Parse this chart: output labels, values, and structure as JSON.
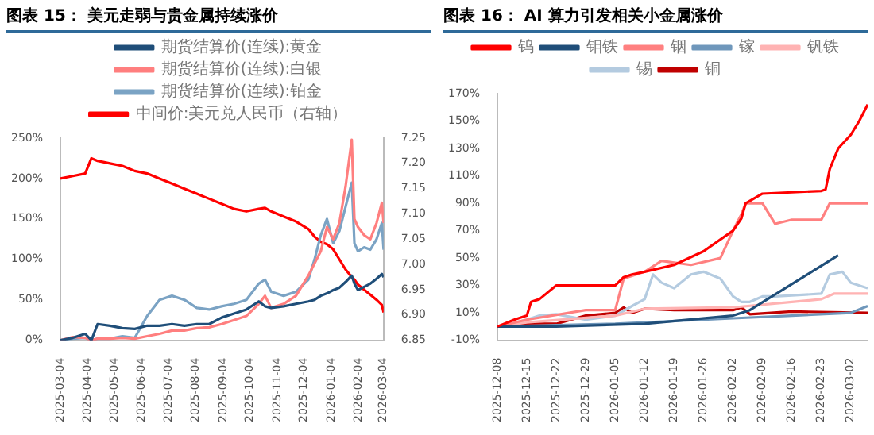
{
  "chart_data": [
    {
      "type": "line",
      "title": "图表 15： 美元走弱与贵金属持续涨价",
      "legend": "top",
      "grid": false,
      "marker": "none",
      "line_style": "solid",
      "x": [
        "2025-03-04",
        "2025-03-18",
        "2025-04-01",
        "2025-04-08",
        "2025-04-15",
        "2025-04-29",
        "2025-05-13",
        "2025-05-27",
        "2025-06-10",
        "2025-06-24",
        "2025-07-08",
        "2025-07-22",
        "2025-08-05",
        "2025-08-19",
        "2025-09-02",
        "2025-09-16",
        "2025-09-30",
        "2025-10-14",
        "2025-10-21",
        "2025-10-28",
        "2025-11-11",
        "2025-11-25",
        "2025-12-09",
        "2025-12-16",
        "2025-12-23",
        "2025-12-30",
        "2026-01-06",
        "2026-01-13",
        "2026-01-20",
        "2026-01-27",
        "2026-01-30",
        "2026-02-03",
        "2026-02-10",
        "2026-02-17",
        "2026-02-24",
        "2026-03-02",
        "2026-03-04"
      ],
      "xlim": [
        "2025-03-04",
        "2026-03-04"
      ],
      "xticks": [
        "2025-03-04",
        "2025-04-04",
        "2025-05-04",
        "2025-06-04",
        "2025-07-04",
        "2025-08-04",
        "2025-09-04",
        "2025-10-04",
        "2025-11-04",
        "2025-12-04",
        "2026-01-04",
        "2026-02-04",
        "2026-03-04"
      ],
      "ylim": [
        0,
        250
      ],
      "yticks": [
        {
          "value": 0,
          "label": "0%"
        },
        {
          "value": 50,
          "label": "50%"
        },
        {
          "value": 100,
          "label": "100%"
        },
        {
          "value": 150,
          "label": "150%"
        },
        {
          "value": 200,
          "label": "200%"
        },
        {
          "value": 250,
          "label": "250%"
        }
      ],
      "y2lim": [
        6.85,
        7.25
      ],
      "y2ticks": [
        6.85,
        {
          "value": 6.9,
          "label": "6.90"
        },
        6.95,
        {
          "value": 7,
          "label": "7.00"
        },
        7.05,
        {
          "value": 7.1,
          "label": "7.10"
        },
        7.15,
        {
          "value": 7.2,
          "label": "7.20"
        },
        7.25
      ],
      "series": [
        {
          "name": "期货结算价(连续):黄金",
          "color": "#1f4e79",
          "values": [
            0,
            3,
            8,
            0,
            20,
            18,
            15,
            14,
            18,
            18,
            20,
            18,
            20,
            20,
            28,
            33,
            38,
            48,
            42,
            40,
            42,
            45,
            48,
            50,
            55,
            58,
            62,
            65,
            72,
            80,
            70,
            62,
            66,
            70,
            76,
            82,
            78
          ]
        },
        {
          "name": "期货结算价(连续):白银",
          "color": "#ff7f7f",
          "values": [
            0,
            4,
            3,
            0,
            2,
            2,
            3,
            2,
            5,
            8,
            12,
            12,
            15,
            16,
            20,
            25,
            30,
            45,
            55,
            40,
            45,
            55,
            80,
            95,
            110,
            140,
            125,
            145,
            190,
            248,
            150,
            140,
            130,
            125,
            145,
            170,
            145
          ]
        },
        {
          "name": "期货结算价(连续):铂金",
          "color": "#7ba3c4",
          "values": [
            0,
            2,
            3,
            0,
            2,
            2,
            5,
            3,
            30,
            50,
            55,
            50,
            40,
            38,
            42,
            45,
            50,
            70,
            75,
            60,
            55,
            60,
            75,
            100,
            130,
            150,
            120,
            135,
            165,
            195,
            120,
            110,
            115,
            112,
            125,
            145,
            112
          ]
        },
        {
          "name": "中间价:美元兑人民币（右轴）",
          "color": "#ff0000",
          "axis": "y2",
          "values": [
            7.17,
            7.175,
            7.18,
            7.21,
            7.205,
            7.2,
            7.195,
            7.185,
            7.18,
            7.17,
            7.16,
            7.15,
            7.14,
            7.13,
            7.12,
            7.11,
            7.105,
            7.11,
            7.112,
            7.105,
            7.095,
            7.085,
            7.07,
            7.055,
            7.045,
            7.04,
            7.03,
            7.01,
            6.99,
            6.975,
            6.97,
            6.96,
            6.95,
            6.94,
            6.93,
            6.92,
            6.905
          ]
        }
      ]
    },
    {
      "type": "line",
      "title": "图表 16： AI 算力引发相关小金属涨价",
      "legend": "top",
      "grid": false,
      "marker": "none",
      "line_style": "solid",
      "xlim": [
        "2025-12-08",
        "2026-03-06"
      ],
      "xticks": [
        "2025-12-08",
        "2025-12-15",
        "2025-12-22",
        "2025-12-29",
        "2026-01-05",
        "2026-01-12",
        "2026-01-19",
        "2026-01-26",
        "2026-02-02",
        "2026-02-09",
        "2026-02-16",
        "2026-02-23",
        "2026-03-02"
      ],
      "ylim": [
        -10,
        170
      ],
      "yticks": [
        {
          "value": -10,
          "label": "-10%"
        },
        {
          "value": 10,
          "label": "10%"
        },
        {
          "value": 30,
          "label": "30%"
        },
        {
          "value": 50,
          "label": "50%"
        },
        {
          "value": 70,
          "label": "70%"
        },
        {
          "value": 90,
          "label": "90%"
        },
        {
          "value": 110,
          "label": "110%"
        },
        {
          "value": 130,
          "label": "130%"
        },
        {
          "value": 150,
          "label": "150%"
        },
        {
          "value": 170,
          "label": "170%"
        }
      ],
      "series": [
        {
          "name": "钨",
          "color": "#ff0000",
          "x": [
            "2025-12-08",
            "2025-12-12",
            "2025-12-15",
            "2025-12-16",
            "2025-12-18",
            "2025-12-22",
            "2026-01-05",
            "2026-01-07",
            "2026-01-09",
            "2026-01-12",
            "2026-01-19",
            "2026-01-26",
            "2026-02-02",
            "2026-02-04",
            "2026-02-05",
            "2026-02-09",
            "2026-02-23",
            "2026-02-24",
            "2026-02-25",
            "2026-02-27",
            "2026-03-02",
            "2026-03-04",
            "2026-03-06"
          ],
          "values": [
            0,
            5,
            8,
            18,
            20,
            30,
            30,
            36,
            38,
            40,
            45,
            55,
            70,
            79,
            90,
            97,
            99,
            100,
            115,
            130,
            140,
            150,
            162
          ]
        },
        {
          "name": "钼铁",
          "color": "#1f4e79",
          "x": [
            "2025-12-08",
            "2025-12-22",
            "2026-01-12",
            "2026-02-02",
            "2026-02-06",
            "2026-02-27"
          ],
          "values": [
            0,
            0,
            2,
            8,
            12,
            52
          ]
        },
        {
          "name": "铟",
          "color": "#ff8080",
          "x": [
            "2025-12-08",
            "2025-12-15",
            "2025-12-29",
            "2026-01-05",
            "2026-01-07",
            "2026-01-12",
            "2026-01-16",
            "2026-01-23",
            "2026-01-30",
            "2026-02-02",
            "2026-02-04",
            "2026-02-05",
            "2026-02-09",
            "2026-02-12",
            "2026-02-16",
            "2026-02-23",
            "2026-02-25",
            "2026-03-06"
          ],
          "values": [
            0,
            5,
            12,
            12,
            35,
            40,
            48,
            45,
            50,
            70,
            82,
            90,
            90,
            75,
            78,
            78,
            90,
            90
          ]
        },
        {
          "name": "镓",
          "color": "#6f97bb",
          "x": [
            "2025-12-08",
            "2026-01-05",
            "2026-02-02",
            "2026-02-16",
            "2026-03-02",
            "2026-03-06"
          ],
          "values": [
            0,
            2,
            6,
            8,
            10,
            15
          ]
        },
        {
          "name": "钒铁",
          "color": "#ffb3b3",
          "x": [
            "2025-12-08",
            "2025-12-15",
            "2026-01-05",
            "2026-01-12",
            "2026-02-02",
            "2026-02-16",
            "2026-02-23",
            "2026-02-26",
            "2026-03-06"
          ],
          "values": [
            0,
            3,
            8,
            13,
            14,
            18,
            20,
            24,
            24
          ]
        },
        {
          "name": "锡",
          "color": "#b4cbe0",
          "x": [
            "2025-12-08",
            "2025-12-15",
            "2025-12-18",
            "2025-12-22",
            "2025-12-29",
            "2026-01-05",
            "2026-01-09",
            "2026-01-12",
            "2026-01-14",
            "2026-01-16",
            "2026-01-19",
            "2026-01-23",
            "2026-01-26",
            "2026-01-30",
            "2026-02-02",
            "2026-02-04",
            "2026-02-06",
            "2026-02-09",
            "2026-02-12",
            "2026-02-23",
            "2026-02-25",
            "2026-02-28",
            "2026-03-02",
            "2026-03-06"
          ],
          "values": [
            0,
            5,
            8,
            9,
            5,
            8,
            15,
            20,
            38,
            32,
            28,
            38,
            40,
            35,
            22,
            18,
            18,
            22,
            22,
            24,
            38,
            40,
            32,
            28
          ]
        },
        {
          "name": "铜",
          "color": "#c00000",
          "x": [
            "2025-12-08",
            "2025-12-15",
            "2025-12-22",
            "2025-12-29",
            "2026-01-05",
            "2026-01-07",
            "2026-01-09",
            "2026-01-12",
            "2026-01-19",
            "2026-01-26",
            "2026-02-02",
            "2026-02-04",
            "2026-02-06",
            "2026-02-16",
            "2026-03-06"
          ],
          "values": [
            0,
            2,
            2,
            8,
            10,
            14,
            10,
            13,
            12,
            12,
            12,
            14,
            9,
            11,
            10
          ]
        }
      ]
    }
  ]
}
